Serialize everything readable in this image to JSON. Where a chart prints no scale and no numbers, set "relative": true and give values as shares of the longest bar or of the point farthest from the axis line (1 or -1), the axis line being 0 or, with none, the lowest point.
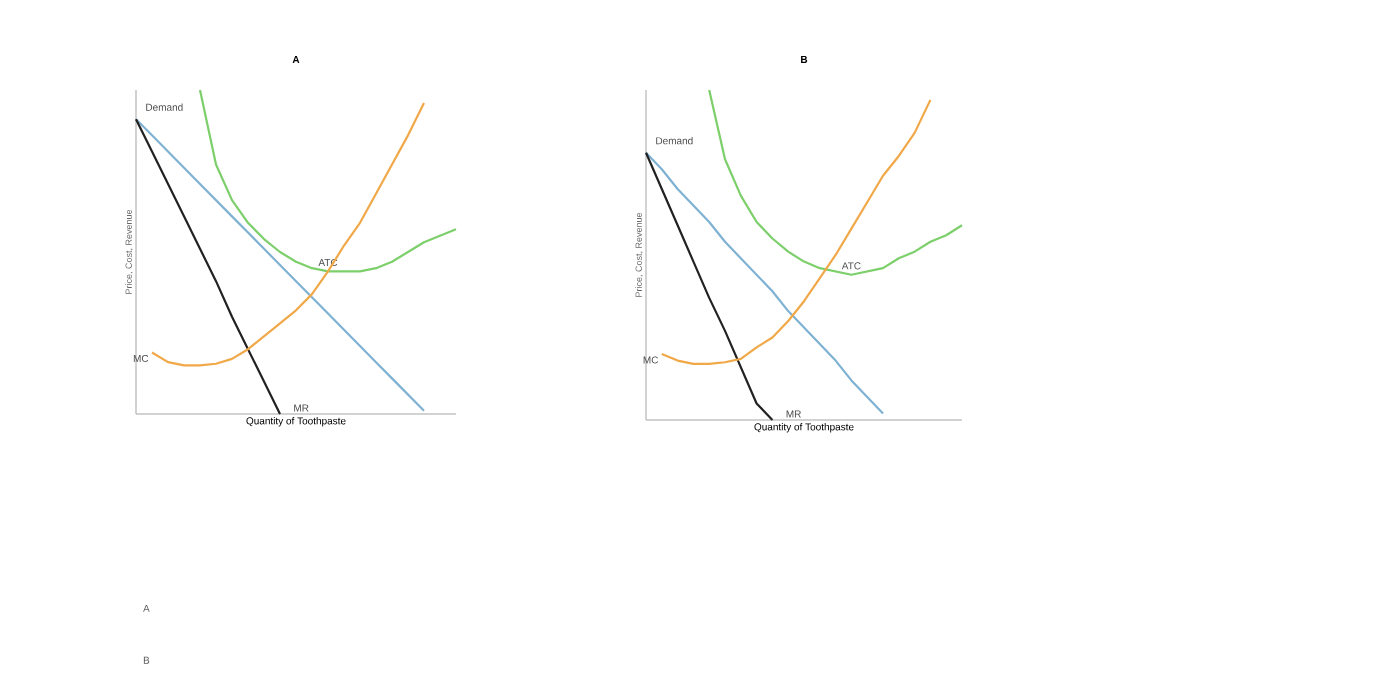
{
  "chart_data": [
    {
      "type": "line",
      "title": "A",
      "xlabel": "Quantity of Toothpaste",
      "ylabel": "Price, Cost, Revenue",
      "relative": true,
      "categories": [
        null,
        null,
        null,
        null,
        null,
        null,
        null,
        null,
        null,
        null,
        null,
        null,
        null,
        null,
        null,
        null,
        null,
        null,
        null,
        null,
        null
      ],
      "series": [
        {
          "name": "Demand",
          "color": "#7fb1d3",
          "values": [
            0.91,
            0.86,
            0.81,
            0.76,
            0.71,
            0.66,
            0.61,
            0.56,
            0.51,
            0.46,
            0.41,
            0.36,
            0.31,
            0.26,
            0.21,
            0.16,
            0.11,
            0.06,
            0.01,
            null,
            null
          ]
        },
        {
          "name": "MR",
          "color": "#222222",
          "values": [
            0.91,
            0.81,
            0.71,
            0.61,
            0.51,
            0.41,
            0.3,
            0.2,
            0.1,
            0.0,
            null,
            null,
            null,
            null,
            null,
            null,
            null,
            null,
            null,
            null,
            null
          ]
        },
        {
          "name": "ATC",
          "color": "#7ccf6a",
          "values": [
            null,
            null,
            null,
            null,
            1.0,
            0.77,
            0.66,
            0.59,
            0.54,
            0.5,
            0.47,
            0.45,
            0.44,
            0.44,
            0.44,
            0.45,
            0.47,
            0.5,
            0.53,
            0.55,
            0.57
          ]
        },
        {
          "name": "MC",
          "color": "#f0a848",
          "values": [
            null,
            0.19,
            0.16,
            0.15,
            0.15,
            0.155,
            0.17,
            0.2,
            0.24,
            0.28,
            0.32,
            0.37,
            0.44,
            0.52,
            0.59,
            0.68,
            0.77,
            0.86,
            0.96,
            null,
            null
          ]
        }
      ],
      "annotations": [
        "A",
        "B"
      ]
    },
    {
      "type": "line",
      "title": "B",
      "xlabel": "Quantity of Toothpaste",
      "ylabel": "Price, Cost, Revenue",
      "relative": true,
      "categories": [
        null,
        null,
        null,
        null,
        null,
        null,
        null,
        null,
        null,
        null,
        null,
        null,
        null,
        null,
        null,
        null,
        null,
        null,
        null,
        null,
        null
      ],
      "series": [
        {
          "name": "Demand",
          "color": "#7fb1d3",
          "values": [
            0.81,
            0.76,
            0.7,
            0.65,
            0.6,
            0.54,
            0.49,
            0.44,
            0.39,
            0.33,
            0.28,
            0.23,
            0.18,
            0.12,
            0.07,
            0.02,
            null,
            null,
            null,
            null,
            null
          ]
        },
        {
          "name": "MR",
          "color": "#222222",
          "values": [
            0.81,
            0.7,
            0.59,
            0.48,
            0.37,
            0.27,
            0.16,
            0.05,
            0.0,
            null,
            null,
            null,
            null,
            null,
            null,
            null,
            null,
            null,
            null,
            null,
            null
          ]
        },
        {
          "name": "ATC",
          "color": "#7ccf6a",
          "values": [
            null,
            null,
            null,
            null,
            1.0,
            0.79,
            0.68,
            0.6,
            0.55,
            0.51,
            0.48,
            0.46,
            0.45,
            0.44,
            0.45,
            0.46,
            0.49,
            0.51,
            0.54,
            0.56,
            0.59
          ]
        },
        {
          "name": "MC",
          "color": "#f0a848",
          "values": [
            null,
            0.2,
            0.18,
            0.17,
            0.17,
            0.175,
            0.185,
            0.22,
            0.25,
            0.3,
            0.36,
            0.43,
            0.5,
            0.58,
            0.66,
            0.74,
            0.8,
            0.87,
            0.97,
            null,
            null
          ]
        }
      ]
    }
  ]
}
